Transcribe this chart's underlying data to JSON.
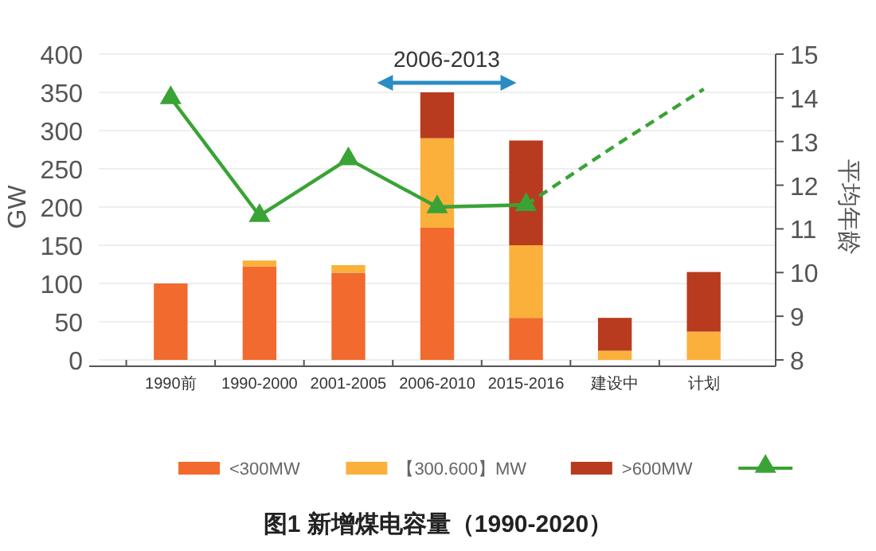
{
  "chart_data": {
    "type": "bar",
    "title": "图1 新增煤电容量（1990-2020）",
    "ylabel": "GW",
    "y2label": "平均年龄",
    "annotations": [
      "2006-2013"
    ],
    "categories": [
      "1990前",
      "1990-2000",
      "2001-2005",
      "2006-2010",
      "2015-2016",
      "建设中",
      "计划"
    ],
    "stacked": true,
    "ylim": [
      0,
      400
    ],
    "yticks": [
      0,
      50,
      100,
      150,
      200,
      250,
      300,
      350,
      400
    ],
    "y2lim": [
      8,
      15
    ],
    "y2ticks": [
      8,
      9,
      10,
      11,
      12,
      13,
      14,
      15
    ],
    "grid": "y",
    "legend": "bottom",
    "series": [
      {
        "name": "<300MW",
        "color": "#f26a2e",
        "values": [
          100,
          122,
          114,
          173,
          55,
          0,
          0
        ]
      },
      {
        "name": "【300.600】MW",
        "color": "#fbb03b",
        "values": [
          0,
          8,
          10,
          117,
          95,
          12,
          37
        ]
      },
      {
        "name": ">600MW",
        "color": "#b83b1f",
        "values": [
          0,
          0,
          0,
          60,
          137,
          43,
          78
        ]
      },
      {
        "type": "line",
        "axis": "y2",
        "color": "#3aa335",
        "marker": "triangle",
        "line_style": "solid",
        "values": [
          14.0,
          11.3,
          12.6,
          11.5,
          11.55,
          null,
          null
        ]
      },
      {
        "type": "line",
        "axis": "y2",
        "color": "#3aa335",
        "marker": "none",
        "line_style": "dashed",
        "values": [
          null,
          null,
          null,
          null,
          11.55,
          12.9,
          14.2
        ]
      }
    ]
  }
}
